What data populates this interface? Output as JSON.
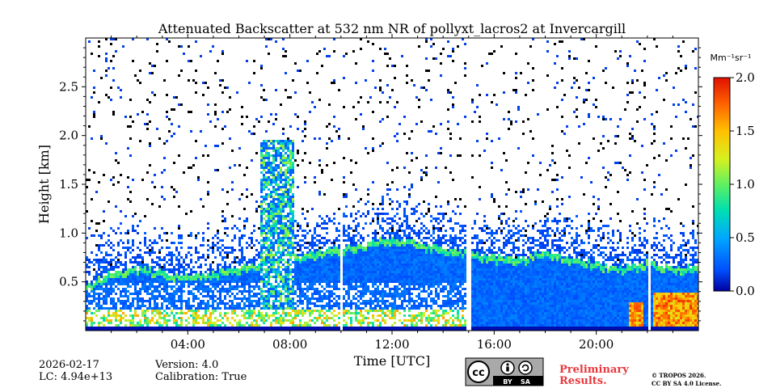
{
  "chart_data": {
    "type": "heatmap",
    "title": "Attenuated Backscatter at 532 nm NR of pollyxt_lacros2 at Invercargill",
    "xlabel": "Time [UTC]",
    "ylabel": "Height [km]",
    "x_range_hours": [
      0,
      24
    ],
    "y_range_km": [
      0,
      3.0
    ],
    "xticks": [
      {
        "value": 4,
        "label": "04:00"
      },
      {
        "value": 8,
        "label": "08:00"
      },
      {
        "value": 12,
        "label": "12:00"
      },
      {
        "value": 16,
        "label": "16:00"
      },
      {
        "value": 20,
        "label": "20:00"
      }
    ],
    "yticks": [
      {
        "value": 0.5,
        "label": "0.5"
      },
      {
        "value": 1.0,
        "label": "1.0"
      },
      {
        "value": 1.5,
        "label": "1.5"
      },
      {
        "value": 2.0,
        "label": "2.0"
      },
      {
        "value": 2.5,
        "label": "2.5"
      }
    ],
    "colorbar": {
      "unit_label": "Mm⁻¹sr⁻¹",
      "range": [
        0.0,
        2.0
      ],
      "ticks": [
        {
          "value": 0.0,
          "label": "0.0"
        },
        {
          "value": 0.5,
          "label": "0.5"
        },
        {
          "value": 1.0,
          "label": "1.0"
        },
        {
          "value": 1.5,
          "label": "1.5"
        },
        {
          "value": 2.0,
          "label": "2.0"
        }
      ],
      "colormap": [
        "#0000a0",
        "#0050ff",
        "#00a8ff",
        "#00e0b0",
        "#60f060",
        "#d8f020",
        "#ffc000",
        "#ff6000",
        "#e01000"
      ]
    },
    "data_gaps_hours": [
      10.05,
      15.0,
      22.1
    ],
    "aerosol_layer_top_km": [
      [
        0.0,
        0.45
      ],
      [
        1.0,
        0.6
      ],
      [
        2.0,
        0.65
      ],
      [
        3.0,
        0.6
      ],
      [
        4.0,
        0.55
      ],
      [
        5.0,
        0.6
      ],
      [
        6.0,
        0.65
      ],
      [
        7.0,
        0.7
      ],
      [
        8.0,
        0.75
      ],
      [
        9.0,
        0.8
      ],
      [
        10.0,
        0.85
      ],
      [
        11.0,
        0.9
      ],
      [
        12.0,
        0.95
      ],
      [
        13.0,
        0.9
      ],
      [
        14.0,
        0.85
      ],
      [
        15.0,
        0.8
      ],
      [
        16.0,
        0.75
      ],
      [
        17.0,
        0.75
      ],
      [
        18.0,
        0.8
      ],
      [
        19.0,
        0.75
      ],
      [
        20.0,
        0.7
      ],
      [
        21.0,
        0.65
      ],
      [
        22.0,
        0.7
      ],
      [
        23.0,
        0.65
      ],
      [
        24.0,
        0.65
      ]
    ],
    "strong_signal_events": [
      {
        "start_h": 6.8,
        "end_h": 8.2,
        "top_km": 1.95
      },
      {
        "start_h": 21.3,
        "end_h": 21.8,
        "top_km": 0.3
      },
      {
        "start_h": 22.2,
        "end_h": 24.0,
        "top_km": 0.4
      }
    ]
  },
  "footer": {
    "date": "2026-02-17",
    "lc": "LC: 4.94e+13",
    "version": "Version: 4.0",
    "calibration": "Calibration: True",
    "license_badge": {
      "cc": "cc",
      "by": "BY",
      "sa": "SA"
    },
    "preliminary_line1": "Preliminary",
    "preliminary_line2": "Results.",
    "copyright_line1": "© TROPOS 2026.",
    "copyright_line2": "CC BY SA 4.0 License."
  },
  "colors": {
    "preliminary": "#e8383d",
    "badge_bg": "#a9a9a9"
  }
}
